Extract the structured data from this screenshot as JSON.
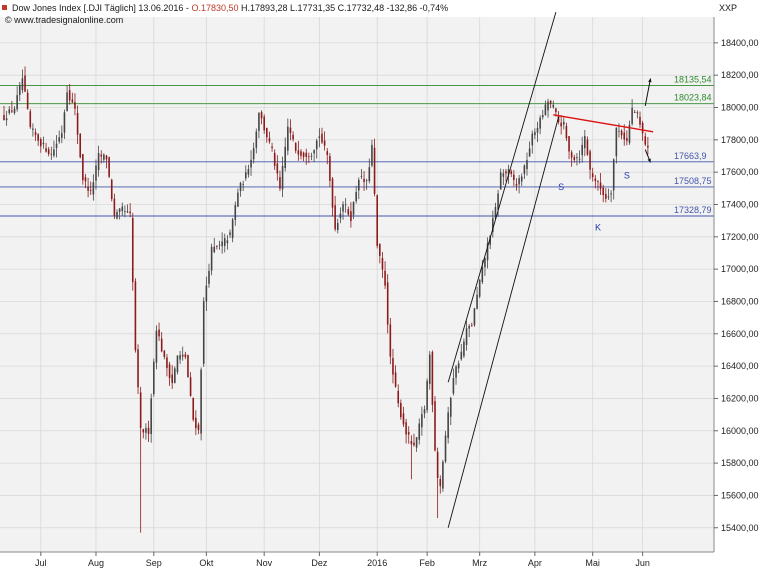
{
  "header": {
    "title": "Dow Jones Index [.DJI  Täglich] 13.06.2016 -",
    "open": "O.17830,50",
    "rest": "H.17893,28 L.17731,35 C.17732,48 -132,86 -0,74%",
    "source": "www.tradesignalonline.com",
    "symbol": "XXP"
  },
  "colors": {
    "up": "#444444",
    "down": "#8b1a1a",
    "grid": "#d8d8d8",
    "panel_bg": "#f2f2f2",
    "level_green": "#2e8b2e",
    "level_blue": "#4455aa",
    "trend_red": "#dd1111",
    "channel": "#111111"
  },
  "chart_data": {
    "type": "candlestick",
    "instrument": "Dow Jones Index",
    "period": "daily",
    "ylim": [
      15250,
      18560
    ],
    "yticks": [
      15400,
      15600,
      15800,
      16000,
      16200,
      16400,
      16600,
      16800,
      17000,
      17200,
      17400,
      17600,
      17800,
      18000,
      18200,
      18400
    ],
    "ytick_labels": [
      "15400,00",
      "15600,00",
      "15800,00",
      "16000,00",
      "16200,00",
      "16400,00",
      "16600,00",
      "16800,00",
      "17000,00",
      "17200,00",
      "17400,00",
      "17600,00",
      "17800,00",
      "18000,00",
      "18200,00",
      "18400,00"
    ],
    "xticks": [
      "Jul",
      "Aug",
      "Sep",
      "Okt",
      "Nov",
      "Dez",
      "2016",
      "Feb",
      "Mrz",
      "Apr",
      "Mai",
      "Jun"
    ],
    "x_range_bars": [
      0,
      242
    ],
    "xtick_bars": [
      14,
      35,
      57,
      77,
      99,
      120,
      142,
      161,
      181,
      202,
      224,
      243
    ],
    "grid": true,
    "control_points": [
      [
        0,
        17940
      ],
      [
        4,
        18000
      ],
      [
        7,
        18180
      ],
      [
        10,
        17870
      ],
      [
        14,
        17780
      ],
      [
        18,
        17710
      ],
      [
        22,
        17850
      ],
      [
        24,
        18110
      ],
      [
        27,
        17980
      ],
      [
        30,
        17560
      ],
      [
        33,
        17470
      ],
      [
        36,
        17700
      ],
      [
        39,
        17690
      ],
      [
        42,
        17320
      ],
      [
        45,
        17370
      ],
      [
        48,
        17330
      ],
      [
        50,
        16500
      ],
      [
        52,
        16000
      ],
      [
        55,
        16000
      ],
      [
        58,
        16640
      ],
      [
        61,
        16440
      ],
      [
        64,
        16300
      ],
      [
        66,
        16460
      ],
      [
        69,
        16460
      ],
      [
        72,
        16070
      ],
      [
        74,
        16000
      ],
      [
        76,
        16790
      ],
      [
        79,
        17120
      ],
      [
        82,
        17140
      ],
      [
        86,
        17210
      ],
      [
        89,
        17480
      ],
      [
        92,
        17580
      ],
      [
        95,
        17750
      ],
      [
        97,
        17980
      ],
      [
        99,
        17870
      ],
      [
        102,
        17730
      ],
      [
        105,
        17490
      ],
      [
        108,
        17880
      ],
      [
        111,
        17740
      ],
      [
        114,
        17710
      ],
      [
        117,
        17720
      ],
      [
        120,
        17830
      ],
      [
        123,
        17700
      ],
      [
        126,
        17250
      ],
      [
        129,
        17410
      ],
      [
        132,
        17320
      ],
      [
        135,
        17570
      ],
      [
        138,
        17530
      ],
      [
        140,
        17760
      ],
      [
        142,
        17140
      ],
      [
        145,
        16910
      ],
      [
        147,
        16440
      ],
      [
        150,
        16160
      ],
      [
        153,
        15990
      ],
      [
        156,
        15890
      ],
      [
        159,
        16090
      ],
      [
        160,
        16140
      ],
      [
        162,
        16470
      ],
      [
        164,
        15890
      ],
      [
        165,
        15720
      ],
      [
        166,
        15660
      ],
      [
        168,
        15970
      ],
      [
        171,
        16340
      ],
      [
        174,
        16480
      ],
      [
        176,
        16620
      ],
      [
        178,
        16660
      ],
      [
        181,
        16920
      ],
      [
        184,
        17150
      ],
      [
        187,
        17370
      ],
      [
        189,
        17590
      ],
      [
        192,
        17600
      ],
      [
        195,
        17520
      ],
      [
        198,
        17620
      ],
      [
        201,
        17820
      ],
      [
        204,
        17920
      ],
      [
        207,
        18040
      ],
      [
        209,
        18000
      ],
      [
        211,
        17910
      ],
      [
        213,
        17890
      ],
      [
        215,
        17720
      ],
      [
        217,
        17690
      ],
      [
        219,
        17700
      ],
      [
        221,
        17820
      ],
      [
        223,
        17610
      ],
      [
        225,
        17550
      ],
      [
        227,
        17500
      ],
      [
        229,
        17440
      ],
      [
        231,
        17490
      ],
      [
        233,
        17870
      ],
      [
        235,
        17840
      ],
      [
        237,
        17790
      ],
      [
        239,
        17990
      ],
      [
        241,
        17950
      ],
      [
        243,
        17830
      ],
      [
        245,
        17733
      ]
    ],
    "horizontal_levels": [
      {
        "value": 18135.54,
        "label": "18135,54",
        "color": "green"
      },
      {
        "value": 18023.84,
        "label": "18023,84",
        "color": "green"
      },
      {
        "value": 17663.9,
        "label": "17663,9",
        "color": "blue"
      },
      {
        "value": 17508.75,
        "label": "17508,75",
        "color": "blue"
      },
      {
        "value": 17328.79,
        "label": "17328,79",
        "color": "blue"
      }
    ],
    "annotations": [
      {
        "text": "S",
        "bar": 212,
        "y": 17490
      },
      {
        "text": "K",
        "bar": 226,
        "y": 17240
      },
      {
        "text": "S",
        "bar": 237,
        "y": 17560
      }
    ],
    "trendlines": [
      {
        "kind": "neckline",
        "color": "red",
        "from": [
          209,
          17955
        ],
        "to": [
          247,
          17850
        ]
      },
      {
        "kind": "channel-lower",
        "color": "black",
        "from": [
          169,
          15400
        ],
        "to": [
          211,
          17940
        ]
      },
      {
        "kind": "channel-upper",
        "color": "black",
        "from": [
          169,
          16300
        ],
        "to": [
          210,
          18590
        ]
      }
    ],
    "arrows": [
      {
        "direction": "up",
        "from": [
          244,
          18010
        ],
        "to": [
          246,
          18180
        ]
      },
      {
        "direction": "down",
        "from": [
          244,
          17740
        ],
        "to": [
          246,
          17660
        ]
      }
    ]
  }
}
